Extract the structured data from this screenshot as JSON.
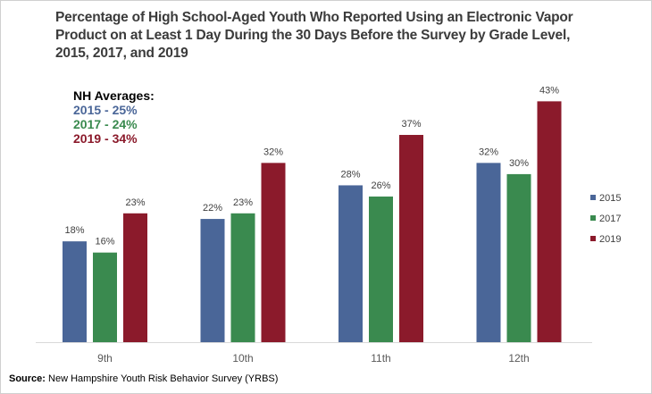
{
  "chart_data": {
    "type": "bar",
    "title": "Percentage of High School-Aged Youth Who Reported Using an Electronic Vapor Product on at Least 1 Day During the 30 Days Before the Survey by Grade Level, 2015, 2017, and 2019",
    "xlabel": "",
    "ylabel": "",
    "ylim": [
      0,
      45
    ],
    "grid": false,
    "legend_position": "right",
    "categories": [
      "9th",
      "10th",
      "11th",
      "12th"
    ],
    "series": [
      {
        "name": "2015",
        "color": "#4a6698",
        "values": [
          18,
          22,
          28,
          32
        ],
        "labels": [
          "18%",
          "22%",
          "28%",
          "32%"
        ]
      },
      {
        "name": "2017",
        "color": "#3a8a4f",
        "values": [
          16,
          23,
          26,
          30
        ],
        "labels": [
          "16%",
          "23%",
          "26%",
          "30%"
        ]
      },
      {
        "name": "2019",
        "color": "#8b1a2b",
        "values": [
          23,
          32,
          37,
          43
        ],
        "labels": [
          "23%",
          "32%",
          "37%",
          "43%"
        ]
      }
    ],
    "annotation": {
      "heading": "NH Averages:",
      "lines": [
        {
          "text": "2015 - 25%",
          "color": "#4a6698"
        },
        {
          "text": "2017 - 24%",
          "color": "#3a8a4f"
        },
        {
          "text": "2019 - 34%",
          "color": "#8b1a2b"
        }
      ]
    }
  },
  "source": {
    "label": "Source:",
    "text": " New Hampshire Youth Risk Behavior Survey (YRBS)"
  }
}
